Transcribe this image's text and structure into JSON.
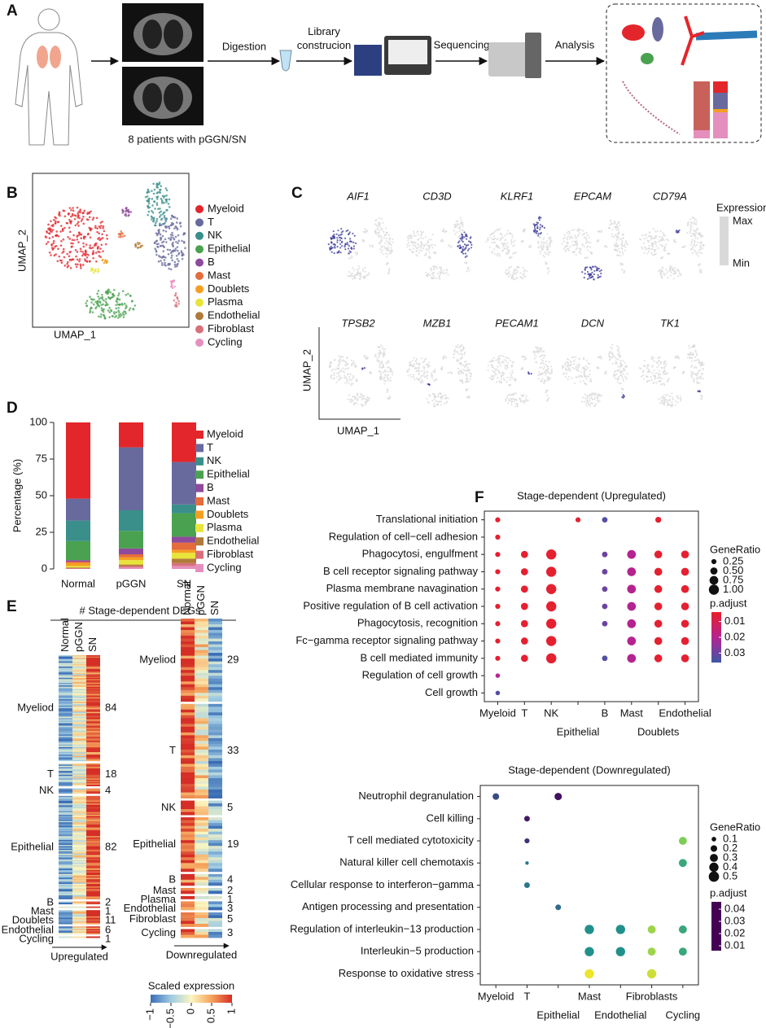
{
  "panel_labels": [
    "A",
    "B",
    "C",
    "D",
    "E",
    "F"
  ],
  "workflow": {
    "steps": [
      "Digestion",
      "Library construcion",
      "Sequencing",
      "Analysis"
    ],
    "caption": "8 patients with pGGN/SN"
  },
  "umap": {
    "x_label": "UMAP_1",
    "y_label": "UMAP_2",
    "cell_types": [
      {
        "name": "Myeloid",
        "color": "#e3262b"
      },
      {
        "name": "T",
        "color": "#686a9e"
      },
      {
        "name": "NK",
        "color": "#3a8f8a"
      },
      {
        "name": "Epithelial",
        "color": "#4aa14f"
      },
      {
        "name": "B",
        "color": "#8e4a9c"
      },
      {
        "name": "Mast",
        "color": "#e46c3d"
      },
      {
        "name": "Doublets",
        "color": "#f59f21"
      },
      {
        "name": "Plasma",
        "color": "#e8e43a"
      },
      {
        "name": "Endothelial",
        "color": "#b07a3a"
      },
      {
        "name": "Fibroblast",
        "color": "#d8707a"
      },
      {
        "name": "Cycling",
        "color": "#e58fbf"
      }
    ]
  },
  "expression": {
    "genes": [
      "AIF1",
      "CD3D",
      "KLRF1",
      "EPCAM",
      "CD79A",
      "TPSB2",
      "MZB1",
      "PECAM1",
      "DCN",
      "TK1"
    ],
    "legend_title": "Expression",
    "max_label": "Max",
    "min_label": "Min",
    "colors": [
      "#d9d9d9",
      "#3a3a9a"
    ],
    "x_label": "UMAP_1",
    "y_label": "UMAP_2"
  },
  "deg_heatmaps": {
    "title": "# Stage-dependent DEGs",
    "panels": [
      {
        "columns": [
          "Normal",
          "pGGN",
          "SN"
        ],
        "direction": "Upregulated",
        "groups": [
          {
            "name": "Myeliod",
            "count": 84
          },
          {
            "name": "T",
            "count": 18
          },
          {
            "name": "NK",
            "count": 4
          },
          {
            "name": "Epithelial",
            "count": 82
          },
          {
            "name": "B",
            "count": 2
          },
          {
            "name": "Mast",
            "count": 1
          },
          {
            "name": "Doublets",
            "count": 11
          },
          {
            "name": "Endothelial",
            "count": 6
          },
          {
            "name": "Cycling",
            "count": 1
          }
        ]
      },
      {
        "columns": [
          "Normal",
          "pGGN",
          "SN"
        ],
        "direction": "Downregulated",
        "groups": [
          {
            "name": "Myeliod",
            "count": 29
          },
          {
            "name": "T",
            "count": 33
          },
          {
            "name": "NK",
            "count": 5
          },
          {
            "name": "Epithelial",
            "count": 19
          },
          {
            "name": "B",
            "count": 4
          },
          {
            "name": "Mast",
            "count": 2
          },
          {
            "name": "Plasma",
            "count": 1
          },
          {
            "name": "Endothelial",
            "count": 3
          },
          {
            "name": "Fibroblast",
            "count": 5
          },
          {
            "name": "Cycling",
            "count": 3
          }
        ]
      }
    ],
    "colorbar": {
      "title": "Scaled expression",
      "clim": [
        -1,
        1
      ],
      "ticks": [
        {
          "value": -1,
          "label": "−1"
        },
        {
          "value": -0.5,
          "label": "−0.5"
        },
        0,
        0.5,
        1
      ],
      "colors": [
        "#3a6db5",
        "#9fcbe3",
        "#fbf6c0",
        "#f5a35b",
        "#d52e26"
      ]
    }
  },
  "chart_data": [
    {
      "type": "bar",
      "stacked": true,
      "y_label": "Percentage (%)",
      "categories": [
        "Normal",
        "pGGN",
        "SN"
      ],
      "ylim": [
        0,
        100
      ],
      "yticks": [
        0,
        25,
        50,
        75,
        100
      ],
      "series": [
        {
          "name": "Myeloid",
          "color": "#e3262b",
          "values": [
            52,
            17,
            27
          ]
        },
        {
          "name": "T",
          "color": "#686a9e",
          "values": [
            15,
            43,
            29
          ]
        },
        {
          "name": "NK",
          "color": "#3a8f8a",
          "values": [
            14,
            14,
            6
          ]
        },
        {
          "name": "Epithelial",
          "color": "#4aa14f",
          "values": [
            13,
            12,
            16
          ]
        },
        {
          "name": "B",
          "color": "#8e4a9c",
          "values": [
            1,
            4,
            4
          ]
        },
        {
          "name": "Mast",
          "color": "#e46c3d",
          "values": [
            1,
            2,
            5
          ]
        },
        {
          "name": "Doublets",
          "color": "#f59f21",
          "values": [
            2,
            2,
            2
          ]
        },
        {
          "name": "Plasma",
          "color": "#e8e43a",
          "values": [
            1,
            3,
            4
          ]
        },
        {
          "name": "Endothelial",
          "color": "#b07a3a",
          "values": [
            0.5,
            1,
            3
          ]
        },
        {
          "name": "Fibroblast",
          "color": "#d8707a",
          "values": [
            0.5,
            1,
            2
          ]
        },
        {
          "name": "Cycling",
          "color": "#e58fbf",
          "values": [
            0,
            1,
            2
          ]
        }
      ]
    },
    {
      "type": "dot",
      "title": "Stage-dependent (Upregulated)",
      "title_color": "#e3262b",
      "categories": [
        "Myeloid",
        "T",
        "NK",
        "Epithelial",
        "B",
        "Mast",
        "Doublets",
        "Endothelial"
      ],
      "terms": [
        "Translational initiation",
        "Regulation of cell−cell adhesion",
        "Phagocytosi, engulfment",
        "B cell receptor signaling pathway",
        "Plasma membrane navagination",
        "Positive regulation of B cell activation",
        "Phagocytosis, recognition",
        "Fc−gamma receptor signaling pathway",
        "B cell mediated immunity",
        "Regulation of cell growth",
        "Cell growth"
      ],
      "sizes": [
        [
          0.25,
          null,
          null,
          0.25,
          0.3,
          null,
          0.35,
          null
        ],
        [
          0.25,
          null,
          null,
          null,
          null,
          null,
          null,
          null
        ],
        [
          0.25,
          0.5,
          1.0,
          null,
          0.3,
          0.75,
          0.6,
          0.6
        ],
        [
          0.25,
          0.5,
          1.0,
          null,
          0.3,
          0.75,
          0.6,
          0.6
        ],
        [
          0.25,
          0.5,
          1.0,
          null,
          0.3,
          0.75,
          0.6,
          0.6
        ],
        [
          0.25,
          0.5,
          1.0,
          null,
          0.3,
          0.75,
          0.6,
          0.6
        ],
        [
          0.25,
          0.5,
          1.0,
          null,
          0.3,
          0.75,
          0.6,
          0.6
        ],
        [
          0.25,
          0.5,
          1.0,
          null,
          null,
          0.75,
          0.6,
          0.6
        ],
        [
          0.25,
          0.5,
          1.0,
          null,
          0.3,
          0.75,
          0.6,
          0.6
        ],
        [
          0.2,
          null,
          null,
          null,
          null,
          null,
          null,
          null
        ],
        [
          0.2,
          null,
          null,
          null,
          null,
          null,
          null,
          null
        ]
      ],
      "p_adjust": [
        [
          0.005,
          null,
          null,
          0.005,
          0.033,
          null,
          0.005,
          null
        ],
        [
          0.005,
          null,
          null,
          null,
          null,
          null,
          null,
          null
        ],
        [
          0.005,
          0.005,
          0.005,
          null,
          0.03,
          0.02,
          0.005,
          0.005
        ],
        [
          0.005,
          0.005,
          0.005,
          null,
          0.03,
          0.02,
          0.005,
          0.005
        ],
        [
          0.005,
          0.005,
          0.005,
          null,
          0.03,
          0.02,
          0.005,
          0.005
        ],
        [
          0.005,
          0.005,
          0.005,
          null,
          0.03,
          0.02,
          0.005,
          0.005
        ],
        [
          0.005,
          0.005,
          0.005,
          null,
          0.03,
          0.02,
          0.005,
          0.005
        ],
        [
          0.005,
          0.005,
          0.005,
          null,
          null,
          0.02,
          0.005,
          0.005
        ],
        [
          0.005,
          0.005,
          0.005,
          null,
          0.033,
          0.02,
          0.005,
          0.005
        ],
        [
          0.02,
          null,
          null,
          null,
          null,
          null,
          null,
          null
        ],
        [
          0.033,
          null,
          null,
          null,
          null,
          null,
          null,
          null
        ]
      ],
      "size_title": "GeneRatio",
      "size_ticks": [
        0.25,
        {
          "value": 0.5,
          "label": "0.50"
        },
        0.75,
        {
          "value": 1,
          "label": "1.00"
        }
      ],
      "color_title": "p.adjust",
      "color_ticks": [
        0.01,
        0.02,
        0.03
      ],
      "clim": [
        0.004,
        0.036
      ],
      "colors": [
        "#e8202a",
        "#b52390",
        "#3d58a8"
      ],
      "colorbar_top": "low"
    },
    {
      "type": "dot",
      "title": "Stage-dependent (Downregulated)",
      "title_color": "#1f3f9a",
      "categories": [
        "Myeloid",
        "T",
        "Epithelial",
        "Mast",
        "Endothelial",
        "Fibroblasts",
        "Cycling"
      ],
      "terms": [
        "Neutrophil degranulation",
        "Cell killing",
        "T cell mediated cytotoxicity",
        "Natural killer cell chemotaxis",
        "Cellular response to interferon−gamma",
        "Antigen processing and presentation",
        "Regulation of interleukin−13 production",
        "Interleukin−5 production",
        "Response to oxidative stress"
      ],
      "sizes": [
        [
          0.2,
          null,
          0.25,
          null,
          null,
          null,
          null
        ],
        [
          null,
          0.15,
          null,
          null,
          null,
          null,
          null
        ],
        [
          null,
          0.12,
          null,
          null,
          null,
          null,
          0.3
        ],
        [
          null,
          0.06,
          null,
          null,
          null,
          null,
          0.3
        ],
        [
          null,
          0.15,
          null,
          null,
          null,
          null,
          null
        ],
        [
          null,
          null,
          0.15,
          null,
          null,
          null,
          null
        ],
        [
          null,
          null,
          null,
          0.4,
          0.4,
          0.3,
          0.3
        ],
        [
          null,
          null,
          null,
          0.4,
          0.4,
          0.3,
          0.3
        ],
        [
          null,
          null,
          null,
          0.4,
          null,
          0.4,
          null
        ]
      ],
      "p_adjust": [
        [
          0.015,
          null,
          0.008,
          null,
          null,
          null,
          null
        ],
        [
          null,
          0.009,
          null,
          null,
          null,
          null,
          null
        ],
        [
          null,
          0.012,
          null,
          null,
          null,
          null,
          0.038
        ],
        [
          null,
          0.022,
          null,
          null,
          null,
          null,
          0.03
        ],
        [
          null,
          0.022,
          null,
          null,
          null,
          null,
          null
        ],
        [
          null,
          null,
          0.02,
          null,
          null,
          null,
          null
        ],
        [
          null,
          null,
          null,
          0.026,
          0.026,
          0.04,
          0.03
        ],
        [
          null,
          null,
          null,
          0.026,
          0.026,
          0.04,
          0.03
        ],
        [
          null,
          null,
          null,
          0.045,
          null,
          0.043,
          null
        ]
      ],
      "size_title": "GeneRatio",
      "size_ticks": [
        0.1,
        0.2,
        0.3,
        0.4,
        0.5
      ],
      "color_title": "p.adjust",
      "color_ticks": [
        0.04,
        0.03,
        0.02,
        0.01
      ],
      "clim": [
        0.006,
        0.046
      ],
      "colors": [
        "#440154",
        "#3b528b",
        "#21908c",
        "#5dc863",
        "#fde725"
      ],
      "colorbar_top": "high"
    }
  ]
}
